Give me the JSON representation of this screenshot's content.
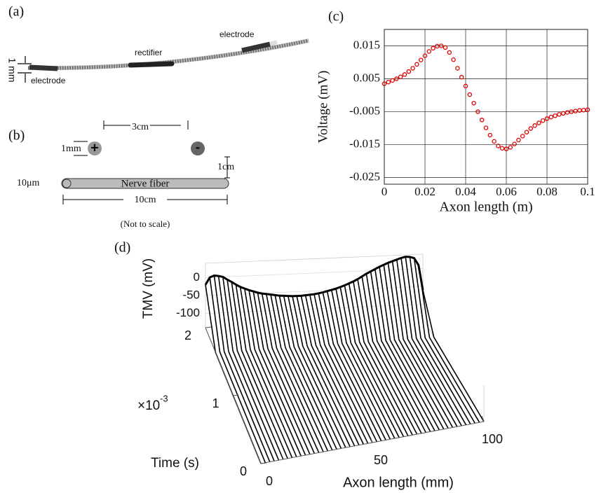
{
  "panels": {
    "a": {
      "label": "(a)",
      "electrode_right": "electrode",
      "rectifier": "rectifier",
      "electrode_left": "electrode",
      "size": "1 mm"
    },
    "b": {
      "label": "(b)",
      "spacing": "3cm",
      "diameter": "1mm",
      "anode": "+",
      "cathode": "-",
      "height": "1cm",
      "fiber_diameter": "10μm",
      "fiber": "Nerve fiber",
      "fiber_length": "10cm",
      "note": "(Not to scale)"
    },
    "d": {
      "label": "(d)"
    }
  },
  "chart_data": [
    {
      "type": "scatter",
      "panel_label": "(c)",
      "xlabel": "Axon length (m)",
      "ylabel": "Voltage (mV)",
      "color": "#e00000",
      "grid": true,
      "xlim": [
        0,
        0.1
      ],
      "xticks": [
        0,
        0.02,
        0.04,
        0.06,
        0.08,
        0.1
      ],
      "ylim": [
        -0.027,
        0.02
      ],
      "yticks": [
        -0.025,
        -0.015,
        -0.005,
        0.005,
        0.015
      ],
      "x": [
        0,
        0.002,
        0.004,
        0.006,
        0.008,
        0.01,
        0.012,
        0.014,
        0.016,
        0.018,
        0.02,
        0.022,
        0.024,
        0.026,
        0.028,
        0.03,
        0.032,
        0.034,
        0.036,
        0.038,
        0.04,
        0.042,
        0.044,
        0.046,
        0.048,
        0.05,
        0.052,
        0.054,
        0.056,
        0.058,
        0.06,
        0.062,
        0.064,
        0.066,
        0.068,
        0.07,
        0.072,
        0.074,
        0.076,
        0.078,
        0.08,
        0.082,
        0.084,
        0.086,
        0.088,
        0.09,
        0.092,
        0.094,
        0.096,
        0.098,
        0.1
      ],
      "values": [
        0.0035,
        0.004,
        0.0045,
        0.005,
        0.0056,
        0.0063,
        0.0072,
        0.0082,
        0.0094,
        0.0107,
        0.012,
        0.0133,
        0.0143,
        0.0149,
        0.015,
        0.0145,
        0.013,
        0.0108,
        0.0082,
        0.0055,
        0.0028,
        0.0002,
        -0.0024,
        -0.005,
        -0.0075,
        -0.0099,
        -0.0121,
        -0.014,
        -0.0154,
        -0.0161,
        -0.0163,
        -0.0158,
        -0.0148,
        -0.0136,
        -0.0124,
        -0.0112,
        -0.0101,
        -0.0092,
        -0.0084,
        -0.0077,
        -0.0071,
        -0.0066,
        -0.0062,
        -0.0058,
        -0.0055,
        -0.0052,
        -0.005,
        -0.0048,
        -0.0046,
        -0.0045,
        -0.0044
      ]
    },
    {
      "type": "surface3d",
      "xlabel": "Axon length (mm)",
      "ylabel": "Time (s)",
      "zlabel": "TMV (mV)",
      "color": "#000000",
      "y_scale": {
        "base": "×10",
        "exponent": "-3"
      },
      "xlim": [
        0,
        100
      ],
      "xticks": [
        0,
        50,
        100
      ],
      "ylim": [
        0,
        2
      ],
      "yticks": [
        0,
        1,
        2
      ],
      "zlim": [
        -140,
        40
      ],
      "zticks": [
        -100,
        -50,
        0
      ],
      "x": [
        0,
        2,
        4,
        6,
        8,
        10,
        12,
        14,
        16,
        18,
        20,
        22,
        24,
        26,
        28,
        30,
        32,
        34,
        36,
        38,
        40,
        42,
        44,
        46,
        48,
        50,
        52,
        54,
        56,
        58,
        60,
        62,
        64,
        66,
        68,
        70,
        72,
        74,
        76,
        78,
        80,
        82,
        84,
        86,
        88,
        90,
        92,
        94,
        96,
        98,
        100
      ],
      "values": [
        -20,
        0,
        5,
        3,
        0,
        -8,
        -15,
        -23,
        -30,
        -35,
        -40,
        -44,
        -48,
        -51,
        -53,
        -55,
        -57,
        -59,
        -60,
        -61,
        -62,
        -62,
        -62,
        -61,
        -60,
        -59,
        -57,
        -55,
        -52,
        -49,
        -46,
        -42,
        -38,
        -33,
        -28,
        -22,
        -15,
        -8,
        -2,
        4,
        10,
        15,
        20,
        24,
        28,
        32,
        35,
        34,
        30,
        10,
        -60
      ]
    }
  ]
}
